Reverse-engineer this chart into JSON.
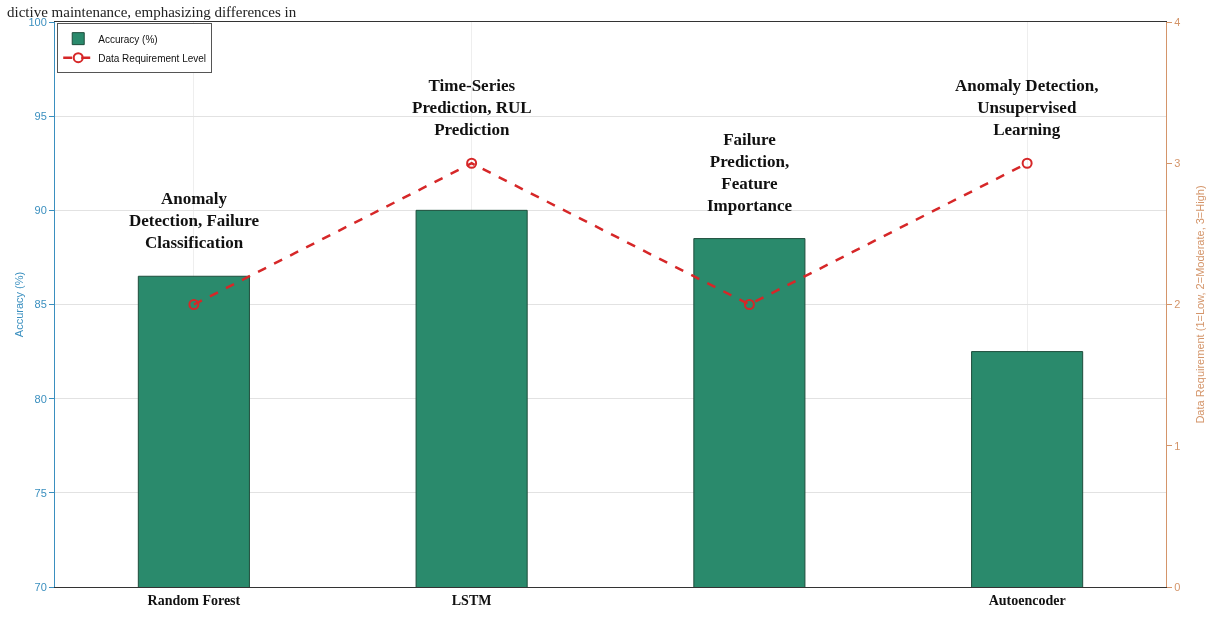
{
  "chart_data": {
    "type": "bar",
    "categories": [
      "Random Forest",
      "LSTM",
      null,
      "Autoencoder"
    ],
    "ylabel": "Accuracy (%)",
    "y2label": "Data Requirement (1=Low, 2=Moderate, 3=High)",
    "series": [
      {
        "name": "Accuracy (%)",
        "color": "#2a8a6c",
        "values": [
          86.5,
          90,
          88.5,
          82.5
        ]
      },
      {
        "name": "Data Requirement Level",
        "type": "line",
        "axis": "y2",
        "color": "#d62728",
        "line_style": "dashed",
        "marker": "circle",
        "values": [
          2,
          3,
          2,
          3
        ]
      }
    ],
    "ylim": [
      70,
      100
    ],
    "yticks": [
      70,
      75,
      80,
      85,
      90,
      95,
      100
    ],
    "y2lim": [
      0,
      4
    ],
    "y2ticks": [
      0,
      1,
      2,
      3,
      4
    ],
    "grid": true,
    "legend": "top left",
    "annotations": [
      "Anomaly\nDetection, Failure\nClassification",
      "Time-Series\nPrediction, RUL\nPrediction",
      "Failure\nPrediction,\nFeature\nImportance",
      "Anomaly Detection,\nUnsupervised\nLearning",
      "dictive maintenance, emphasizing differences in"
    ]
  }
}
